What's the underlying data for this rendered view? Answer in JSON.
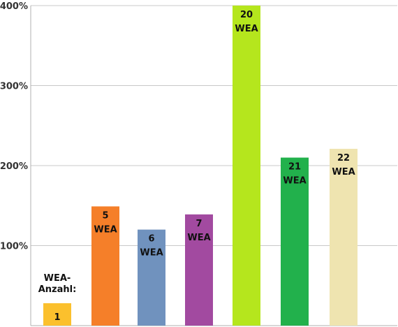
{
  "chart_data": {
    "type": "bar",
    "title": "",
    "xlabel": "",
    "ylabel": "",
    "ylim": [
      0,
      400
    ],
    "yticks": [
      {
        "value": 100,
        "label": "100%"
      },
      {
        "value": 200,
        "label": "200%"
      },
      {
        "value": 300,
        "label": "300%"
      },
      {
        "value": 400,
        "label": "400%"
      }
    ],
    "grid": true,
    "legend": "none",
    "bars": [
      {
        "value": 28,
        "color": "#FBC02D",
        "label_lines": [
          "WEA-",
          "Anzahl:",
          "1"
        ],
        "label_position": "above"
      },
      {
        "value": 149,
        "color": "#F57F29",
        "label_lines": [
          "5",
          "WEA"
        ],
        "label_position": "inside"
      },
      {
        "value": 120,
        "color": "#7092BE",
        "label_lines": [
          "6",
          "WEA"
        ],
        "label_position": "inside"
      },
      {
        "value": 139,
        "color": "#A24AA0",
        "label_lines": [
          "7",
          "WEA"
        ],
        "label_position": "inside"
      },
      {
        "value": 400,
        "color": "#B5E61D",
        "label_lines": [
          "20",
          "WEA"
        ],
        "label_position": "inside"
      },
      {
        "value": 210,
        "color": "#22B14C",
        "label_lines": [
          "21",
          "WEA"
        ],
        "label_position": "inside"
      },
      {
        "value": 221,
        "color": "#EFE4B0",
        "label_lines": [
          "22",
          "WEA"
        ],
        "label_position": "inside"
      }
    ]
  }
}
